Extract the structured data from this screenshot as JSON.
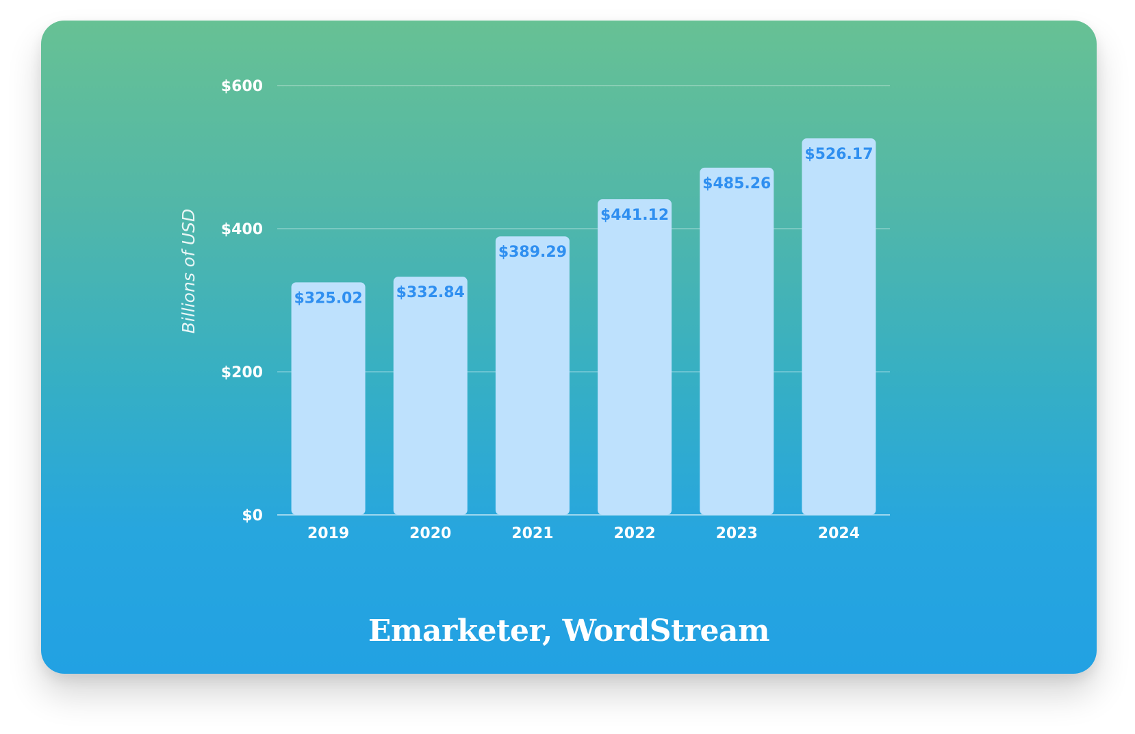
{
  "chart_data": {
    "type": "bar",
    "categories": [
      "2019",
      "2020",
      "2021",
      "2022",
      "2023",
      "2024"
    ],
    "values": [
      325.02,
      332.84,
      389.29,
      441.12,
      485.26,
      526.17
    ],
    "value_labels": [
      "$325.02",
      "$332.84",
      "$389.29",
      "$441.12",
      "$485.26",
      "$526.17"
    ],
    "title": "",
    "xlabel": "",
    "ylabel": "Billions of USD",
    "ylim": [
      0,
      600
    ],
    "yticks": [
      0,
      200,
      400,
      600
    ],
    "ytick_labels": [
      "$0",
      "$200",
      "$400",
      "$600"
    ],
    "grid": true,
    "legend": "none",
    "colors": {
      "bar_fill": "#bee1fd",
      "bar_label": "#2f8ff0",
      "text": "#ffffff",
      "background_top": "#67c194",
      "background_bottom": "#22a1e3"
    }
  },
  "source_text": "Emarketer, WordStream"
}
